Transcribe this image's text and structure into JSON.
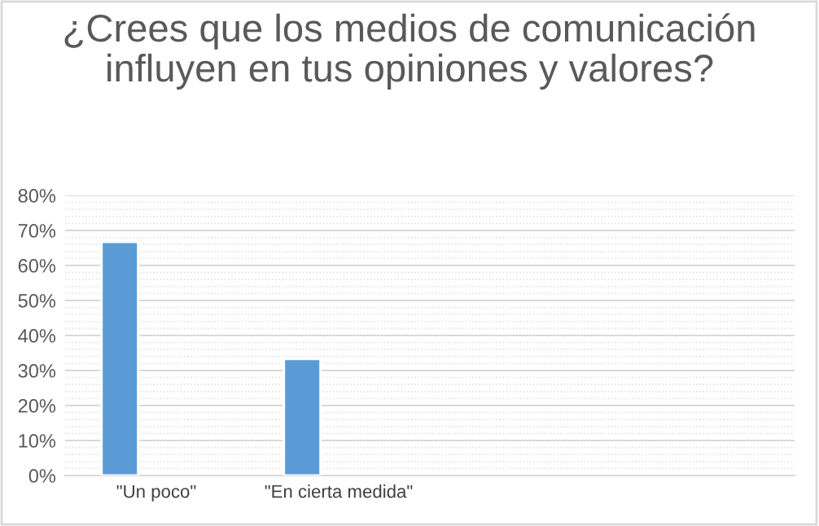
{
  "chart_data": {
    "type": "bar",
    "title": "¿Crees que los medios de comunicación influyen en tus opiniones y valores?",
    "categories": [
      "\"Un poco\"",
      "\"En cierta medida\"",
      null,
      null
    ],
    "values": [
      66.7,
      33.3,
      null,
      null
    ],
    "color": "#5b9bd5",
    "ylim": [
      0,
      80
    ],
    "yticks": [
      {
        "value": 0,
        "label": "0%"
      },
      {
        "value": 10,
        "label": "10%"
      },
      {
        "value": 20,
        "label": "20%"
      },
      {
        "value": 30,
        "label": "30%"
      },
      {
        "value": 40,
        "label": "40%"
      },
      {
        "value": 50,
        "label": "50%"
      },
      {
        "value": 60,
        "label": "60%"
      },
      {
        "value": 70,
        "label": "70%"
      },
      {
        "value": 80,
        "label": "80%"
      }
    ],
    "grid": "y"
  }
}
